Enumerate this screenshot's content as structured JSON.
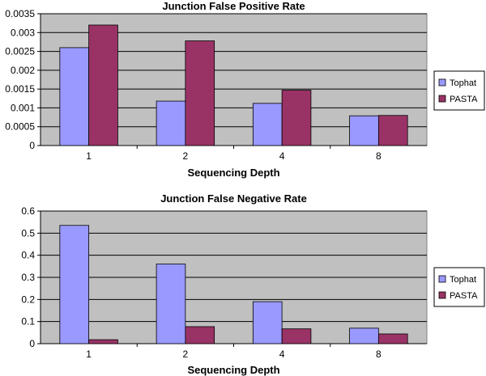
{
  "chart_data": [
    {
      "type": "bar",
      "title": "Junction False Positive Rate",
      "xlabel": "Sequencing Depth",
      "ylabel": "",
      "categories": [
        "1",
        "2",
        "4",
        "8"
      ],
      "ylim": [
        0,
        0.0035
      ],
      "yticks": [
        "0",
        "0.0005",
        "0.001",
        "0.0015",
        "0.002",
        "0.0025",
        "0.003",
        "0.0035"
      ],
      "grid": true,
      "legend": "right",
      "series": [
        {
          "name": "Tophat",
          "color": "#9999ff",
          "values": [
            0.0026,
            0.00118,
            0.00112,
            0.00079
          ]
        },
        {
          "name": "PASTA",
          "color": "#993366",
          "values": [
            0.0032,
            0.00278,
            0.00147,
            0.0008
          ]
        }
      ]
    },
    {
      "type": "bar",
      "title": "Junction False Negative Rate",
      "xlabel": "Sequencing Depth",
      "ylabel": "",
      "categories": [
        "1",
        "2",
        "4",
        "8"
      ],
      "ylim": [
        0,
        0.6
      ],
      "yticks": [
        "0",
        "0.1",
        "0.2",
        "0.3",
        "0.4",
        "0.5",
        "0.6"
      ],
      "grid": true,
      "legend": "right",
      "series": [
        {
          "name": "Tophat",
          "color": "#9999ff",
          "values": [
            0.535,
            0.36,
            0.19,
            0.07
          ]
        },
        {
          "name": "PASTA",
          "color": "#993366",
          "values": [
            0.018,
            0.077,
            0.067,
            0.044
          ]
        }
      ]
    }
  ],
  "colors": {
    "plot_area": "#c0c0c0",
    "grid": "#000000",
    "axis": "#808080"
  }
}
